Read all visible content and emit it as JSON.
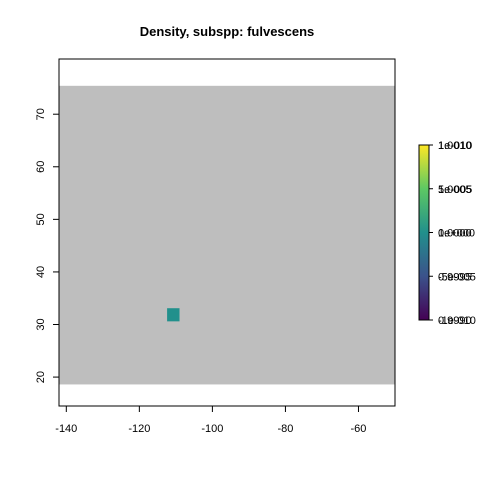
{
  "chart_data": {
    "type": "heatmap",
    "title": "Density, subspp: fulvescens",
    "xlabel": "",
    "ylabel": "",
    "xlim": [
      -142,
      -50
    ],
    "ylim": [
      14.5,
      80.5
    ],
    "x_ticks": [
      -140,
      -120,
      -100,
      -80,
      -60
    ],
    "y_ticks": [
      20,
      30,
      40,
      50,
      60,
      70
    ],
    "x_tick_labels": [
      "-140",
      "-120",
      "-100",
      "-80",
      "-60"
    ],
    "y_tick_labels": [
      "20",
      "30",
      "40",
      "50",
      "60",
      "70"
    ],
    "background_raster": {
      "x": [
        -142,
        -50
      ],
      "y": [
        18.6,
        75.4
      ],
      "color": "#bebebe"
    },
    "cells": [
      {
        "x": [
          -112.4,
          -109
        ],
        "y": [
          30.6,
          33.1
        ],
        "value": 1.0,
        "color": "#21908c"
      }
    ],
    "legend": {
      "placement": "right",
      "gradient": [
        "#440154",
        "#3b528b",
        "#21908c",
        "#5dc863",
        "#fde725"
      ],
      "overlapping_labels": [
        [
          "1e-010",
          "1.0010"
        ],
        [
          "5e-005",
          "1.0005"
        ],
        [
          "0e+000",
          "1.0000"
        ],
        [
          "-5e-005",
          "0.9995"
        ],
        [
          "-1e-010",
          "0.9990"
        ]
      ]
    }
  }
}
